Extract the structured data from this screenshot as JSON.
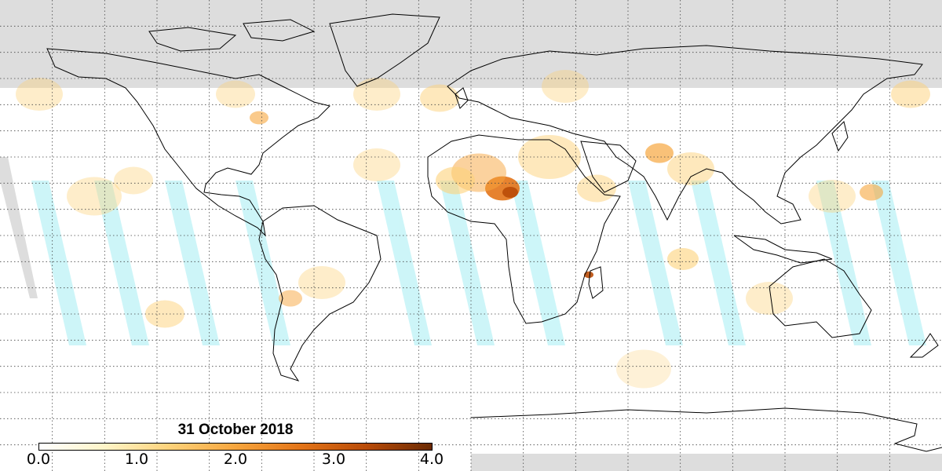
{
  "map": {
    "date_label": "31 October 2018",
    "colorbar": {
      "min": 0.0,
      "max": 4.0,
      "tick_labels": [
        "0.0",
        "1.0",
        "2.0",
        "3.0",
        "4.0"
      ],
      "colors": [
        "#ffffff",
        "#fff5c8",
        "#fdd27a",
        "#f7a63e",
        "#e37418",
        "#b94b08",
        "#6b2a03"
      ]
    },
    "colors": {
      "no_data_gray": "#dddddd",
      "low_value_cyan": "#c8f5f8",
      "coastline": "#000000",
      "grid": "#444444"
    },
    "grid": {
      "lon_step_deg": 20,
      "lat_step_deg": 10,
      "style": "dotted"
    }
  }
}
